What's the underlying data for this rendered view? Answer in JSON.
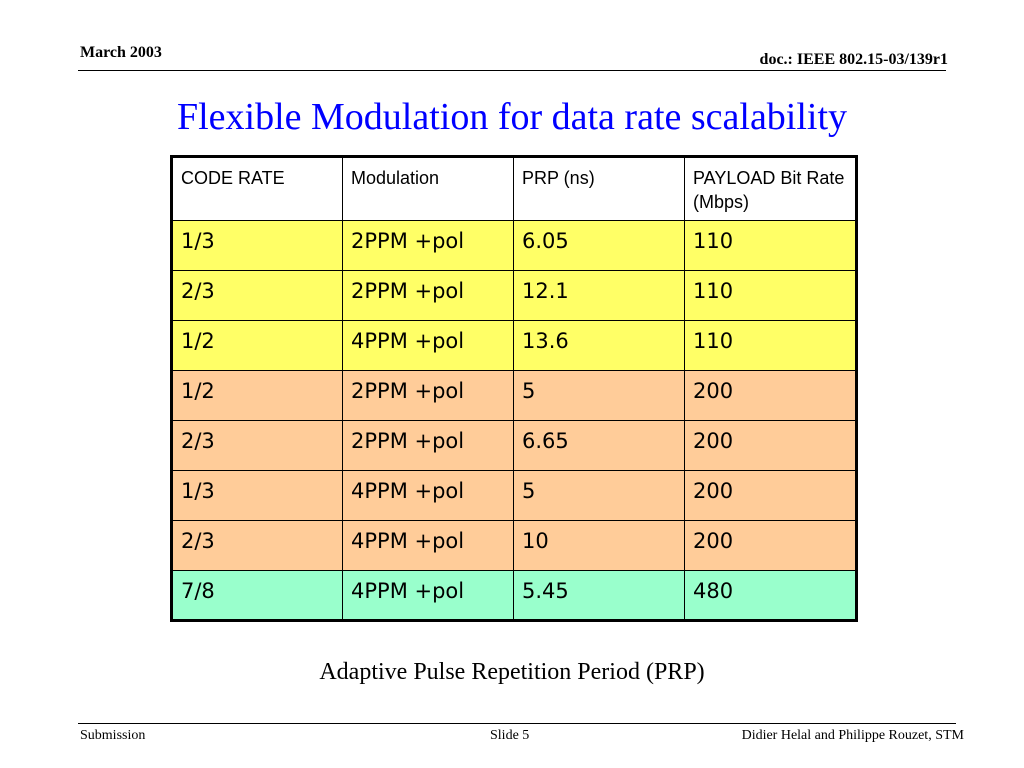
{
  "header": {
    "date": "March 2003",
    "doc_id": "doc.: IEEE 802.15-03/139r1"
  },
  "title": "Flexible Modulation for data rate scalability",
  "table": {
    "columns": [
      "CODE RATE",
      "Modulation",
      "PRP (ns)",
      "PAYLOAD Bit Rate (Mbps)"
    ],
    "rows": [
      {
        "code_rate": "1/3",
        "modulation": "2PPM +pol",
        "prp": "6.05",
        "bit_rate": "110",
        "color": "#ffff66"
      },
      {
        "code_rate": "2/3",
        "modulation": "2PPM +pol",
        "prp": "12.1",
        "bit_rate": "110",
        "color": "#ffff66"
      },
      {
        "code_rate": "1/2",
        "modulation": "4PPM +pol",
        "prp": "13.6",
        "bit_rate": "110",
        "color": "#ffff66"
      },
      {
        "code_rate": "1/2",
        "modulation": "2PPM +pol",
        "prp": "5",
        "bit_rate": "200",
        "color": "#ffcc99"
      },
      {
        "code_rate": "2/3",
        "modulation": "2PPM +pol",
        "prp": "6.65",
        "bit_rate": "200",
        "color": "#ffcc99"
      },
      {
        "code_rate": "1/3",
        "modulation": "4PPM +pol",
        "prp": "5",
        "bit_rate": "200",
        "color": "#ffcc99"
      },
      {
        "code_rate": "2/3",
        "modulation": "4PPM +pol",
        "prp": "10",
        "bit_rate": "200",
        "color": "#ffcc99"
      },
      {
        "code_rate": "7/8",
        "modulation": "4PPM +pol",
        "prp": "5.45",
        "bit_rate": "480",
        "color": "#99ffcc"
      }
    ]
  },
  "caption": "Adaptive Pulse Repetition Period (PRP)",
  "footer": {
    "left": "Submission",
    "center": "Slide 5",
    "right": "Didier Helal and Philippe Rouzet, STM"
  },
  "colors": {
    "title": "#0000ff"
  }
}
